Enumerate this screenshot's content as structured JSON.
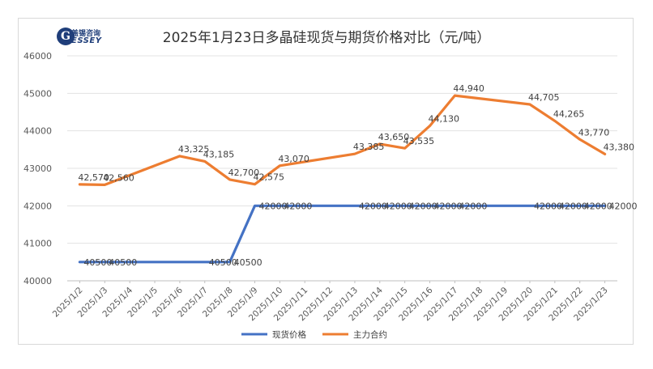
{
  "logo": {
    "initial": "G",
    "cn": "盖锡咨询",
    "en": "ESSEY"
  },
  "chart_data": {
    "type": "line",
    "title": "2025年1月23日多晶硅现货与期货价格对比（元/吨）",
    "categories": [
      "2025/1/2",
      "2025/1/3",
      "2025/1/4",
      "2025/1/5",
      "2025/1/6",
      "2025/1/7",
      "2025/1/8",
      "2025/1/9",
      "2025/1/10",
      "2025/1/11",
      "2025/1/12",
      "2025/1/13",
      "2025/1/14",
      "2025/1/15",
      "2025/1/16",
      "2025/1/17",
      "2025/1/18",
      "2025/1/19",
      "2025/1/20",
      "2025/1/21",
      "2025/1/22",
      "2025/1/23"
    ],
    "ylim": [
      40000,
      46000
    ],
    "yticks": [
      40000,
      41000,
      42000,
      43000,
      44000,
      45000,
      46000
    ],
    "grid": true,
    "legend_position": "bottom",
    "series": [
      {
        "name": "现货价格",
        "color": "#4472c4",
        "points": [
          {
            "x": "2025/1/2",
            "y": 40500,
            "label": "40500"
          },
          {
            "x": "2025/1/3",
            "y": 40500,
            "label": "40500"
          },
          {
            "x": "2025/1/6",
            "y": 40500
          },
          {
            "x": "2025/1/7",
            "y": 40500,
            "label": "40500"
          },
          {
            "x": "2025/1/8",
            "y": 40500,
            "label": "40500"
          },
          {
            "x": "2025/1/9",
            "y": 42000,
            "label": "42000"
          },
          {
            "x": "2025/1/10",
            "y": 42000,
            "label": "42000"
          },
          {
            "x": "2025/1/13",
            "y": 42000,
            "label": "42000"
          },
          {
            "x": "2025/1/14",
            "y": 42000,
            "label": "42000"
          },
          {
            "x": "2025/1/15",
            "y": 42000,
            "label": "42000"
          },
          {
            "x": "2025/1/16",
            "y": 42000,
            "label": "42000"
          },
          {
            "x": "2025/1/17",
            "y": 42000,
            "label": "42000"
          },
          {
            "x": "2025/1/20",
            "y": 42000,
            "label": "42000"
          },
          {
            "x": "2025/1/21",
            "y": 42000,
            "label": "42000"
          },
          {
            "x": "2025/1/22",
            "y": 42000,
            "label": "42000"
          },
          {
            "x": "2025/1/23",
            "y": 42000,
            "label": "42000"
          }
        ]
      },
      {
        "name": "主力合约",
        "color": "#ed7d31",
        "points": [
          {
            "x": "2025/1/2",
            "y": 42570,
            "label": "42,570"
          },
          {
            "x": "2025/1/3",
            "y": 42560,
            "label": "42,560"
          },
          {
            "x": "2025/1/6",
            "y": 43325,
            "label": "43,325"
          },
          {
            "x": "2025/1/7",
            "y": 43185,
            "label": "43,185"
          },
          {
            "x": "2025/1/8",
            "y": 42700,
            "label": "42,700"
          },
          {
            "x": "2025/1/9",
            "y": 42575,
            "label": "42,575"
          },
          {
            "x": "2025/1/10",
            "y": 43070,
            "label": "43,070"
          },
          {
            "x": "2025/1/13",
            "y": 43385,
            "label": "43,385"
          },
          {
            "x": "2025/1/14",
            "y": 43650,
            "label": "43,650"
          },
          {
            "x": "2025/1/15",
            "y": 43535,
            "label": "43,535"
          },
          {
            "x": "2025/1/16",
            "y": 44130,
            "label": "44,130"
          },
          {
            "x": "2025/1/17",
            "y": 44940,
            "label": "44,940"
          },
          {
            "x": "2025/1/20",
            "y": 44705,
            "label": "44,705"
          },
          {
            "x": "2025/1/21",
            "y": 44265,
            "label": "44,265"
          },
          {
            "x": "2025/1/22",
            "y": 43770,
            "label": "43,770"
          },
          {
            "x": "2025/1/23",
            "y": 43380,
            "label": "43,380"
          }
        ]
      }
    ]
  }
}
